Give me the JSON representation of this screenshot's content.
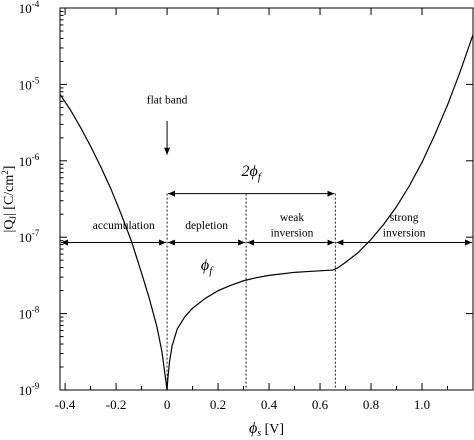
{
  "chart_data": {
    "type": "line",
    "xlabel": "ϕs [V]",
    "xlabel_main": "ϕ",
    "xlabel_sub": "s",
    "xlabel_unit": " [V]",
    "ylabel": "|QJ| [C/cm2]",
    "ylabel_parts": {
      "a": "|Q",
      "b": "J",
      "c": "| [C/cm",
      "d": "2",
      "e": "]"
    },
    "xlim": [
      -0.42,
      1.2
    ],
    "ylim_log10": [
      -9,
      -4
    ],
    "y_scale": "log",
    "x_ticks": [
      {
        "value": -0.4,
        "label": "-0.4"
      },
      {
        "value": -0.2,
        "label": "-0.2"
      },
      {
        "value": 0.0,
        "label": "0"
      },
      {
        "value": 0.2,
        "label": "0.2"
      },
      {
        "value": 0.4,
        "label": "0.4"
      },
      {
        "value": 0.6,
        "label": "0.6"
      },
      {
        "value": 0.8,
        "label": "0.8"
      },
      {
        "value": 1.0,
        "label": "1.0"
      }
    ],
    "y_ticks": [
      {
        "exp": -9,
        "base": "10",
        "power": "-9"
      },
      {
        "exp": -8,
        "base": "10",
        "power": "-8"
      },
      {
        "exp": -7,
        "base": "10",
        "power": "-7"
      },
      {
        "exp": -6,
        "base": "10",
        "power": "-6"
      },
      {
        "exp": -5,
        "base": "10",
        "power": "-5"
      },
      {
        "exp": -4,
        "base": "10",
        "power": "-4"
      }
    ],
    "series": [
      {
        "x": [
          -0.42,
          -0.38,
          -0.34,
          -0.3,
          -0.26,
          -0.22,
          -0.18,
          -0.14,
          -0.1,
          -0.07,
          -0.04,
          -0.02,
          0.0,
          0.003,
          0.01,
          0.02,
          0.04,
          0.07,
          0.1,
          0.15,
          0.2,
          0.25,
          0.3,
          0.35,
          0.4,
          0.45,
          0.5,
          0.55,
          0.6,
          0.65,
          0.67,
          0.7,
          0.75,
          0.8,
          0.85,
          0.9,
          0.95,
          1.0,
          1.05,
          1.1,
          1.15,
          1.2
        ],
        "log10y": [
          -5.13,
          -5.33,
          -5.56,
          -5.81,
          -6.08,
          -6.37,
          -6.7,
          -7.05,
          -7.47,
          -7.8,
          -8.17,
          -8.5,
          -9.0,
          -8.85,
          -8.62,
          -8.42,
          -8.2,
          -8.04,
          -7.93,
          -7.8,
          -7.7,
          -7.63,
          -7.57,
          -7.53,
          -7.5,
          -7.48,
          -7.46,
          -7.45,
          -7.44,
          -7.43,
          -7.4,
          -7.33,
          -7.2,
          -7.03,
          -6.83,
          -6.6,
          -6.33,
          -6.02,
          -5.66,
          -5.27,
          -4.83,
          -4.35
        ]
      }
    ],
    "vertical_lines": [
      0.0,
      0.31,
      0.66
    ],
    "regions": [
      {
        "label": "accumulation",
        "x_from": -0.42,
        "x_to": 0.0,
        "label_x": -0.17,
        "label_log10": -6.89
      },
      {
        "label": "depletion",
        "x_from": 0.0,
        "x_to": 0.31,
        "label_x": 0.155,
        "label_log10": -6.89
      },
      {
        "label": "weak",
        "x_from": 0.31,
        "x_to": 0.66,
        "label_x": 0.49,
        "label_log10": -6.79
      },
      {
        "label": "inversion",
        "x_from": 0.31,
        "x_to": 0.66,
        "label_x": 0.49,
        "label_log10": -6.99
      },
      {
        "label": "strong",
        "x_from": 0.66,
        "x_to": 1.2,
        "label_x": 0.93,
        "label_log10": -6.79
      },
      {
        "label": "inversion",
        "x_from": 0.66,
        "x_to": 1.2,
        "label_x": 0.93,
        "label_log10": -6.99
      }
    ],
    "region_arrow_log10": -7.07,
    "annotations": {
      "flat_band": {
        "text": "flat band",
        "x": 0.0,
        "label_log10": -5.25,
        "arrow_from_log10": -5.48,
        "arrow_to_log10": -5.92
      },
      "two_phi_f": {
        "main": "2ϕ",
        "sub": "f",
        "x_from": 0.0,
        "x_to": 0.66,
        "arrow_log10": -6.43,
        "label_x": 0.33,
        "label_log10": -6.2
      },
      "phi_f": {
        "main": "ϕ",
        "sub": "f",
        "x": 0.155,
        "label_log10": -7.43
      }
    }
  }
}
